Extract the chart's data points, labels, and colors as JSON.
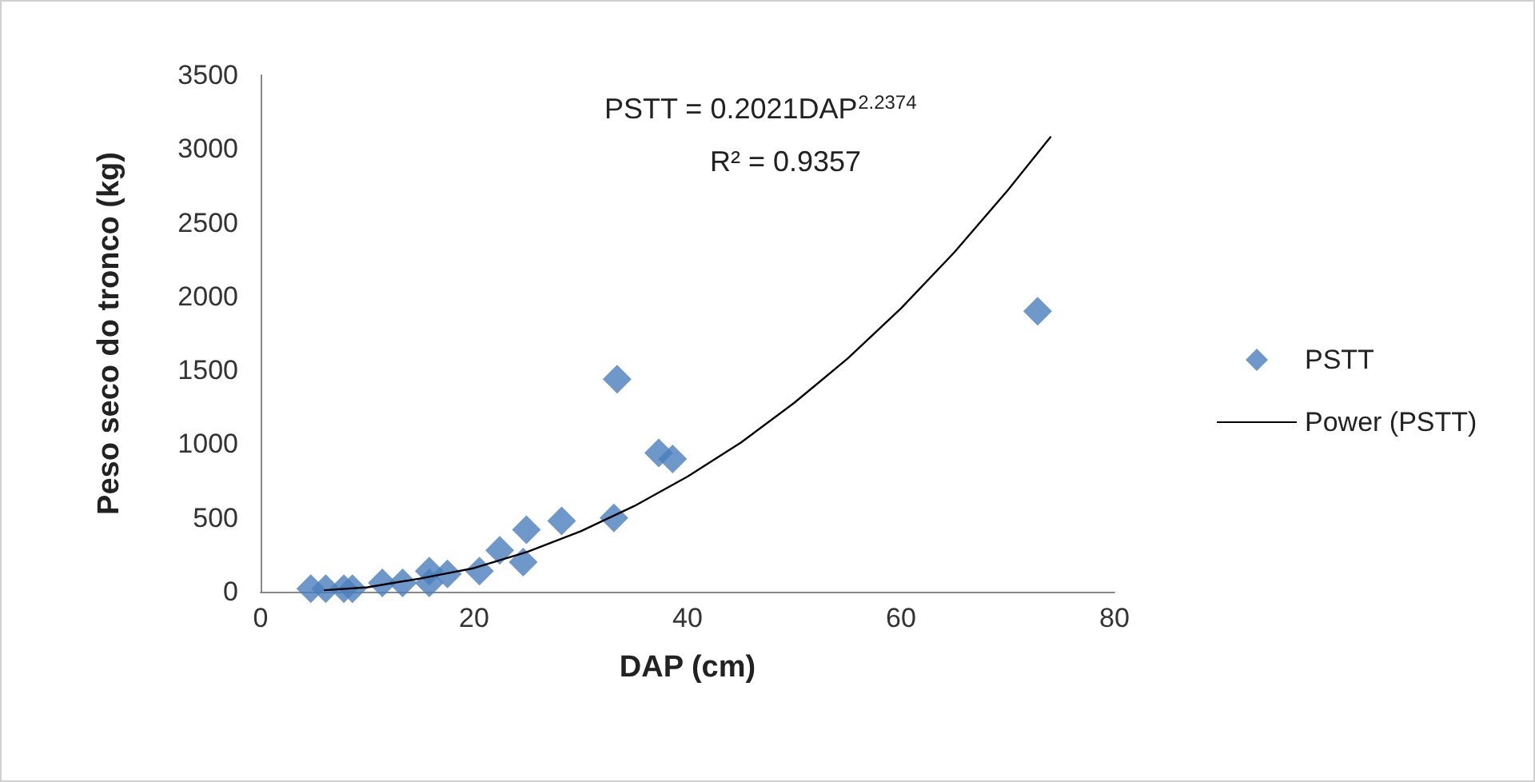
{
  "chart_data": {
    "type": "scatter",
    "xlabel": "DAP (cm)",
    "ylabel": "Peso seco do tronco (kg)",
    "xlim": [
      0,
      80
    ],
    "xticks": [
      0,
      20,
      40,
      60,
      80
    ],
    "ylim": [
      0,
      3500
    ],
    "yticks": [
      0,
      500,
      1000,
      1500,
      2000,
      2500,
      3000,
      3500
    ],
    "grid": false,
    "legend": "right",
    "marker": "diamond",
    "annotations": [
      "PSTT = 0.2021DAP$^{2.2374}$",
      "R² = 0.9357"
    ],
    "series": [
      {
        "name": "PSTT",
        "color": "#4a7ebb",
        "x": [
          4.7,
          6.1,
          7.8,
          8.6,
          11.4,
          13.3,
          15.8,
          15.8,
          17.5,
          20.5,
          22.4,
          24.6,
          24.9,
          28.2,
          33.1,
          33.4,
          37.3,
          38.6,
          72.8
        ],
        "values": [
          20,
          20,
          20,
          20,
          60,
          60,
          140,
          60,
          120,
          140,
          280,
          200,
          420,
          480,
          500,
          1440,
          940,
          900,
          1900
        ]
      },
      {
        "name": "Power (PSTT)",
        "type": "line",
        "color": "#000000",
        "marker": "none",
        "line_style": "solid",
        "x": [
          6,
          10,
          15,
          20,
          25,
          30,
          35,
          40,
          45,
          50,
          55,
          60,
          65,
          70,
          74
        ],
        "values": [
          10,
          30,
          90,
          160,
          270,
          410,
          580,
          780,
          1010,
          1280,
          1580,
          1920,
          2300,
          2720,
          3080
        ]
      }
    ]
  }
}
